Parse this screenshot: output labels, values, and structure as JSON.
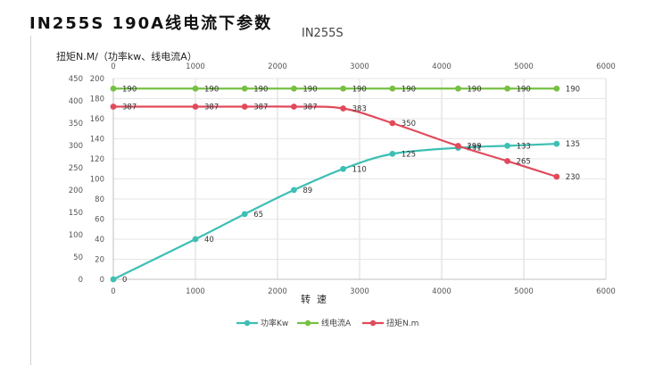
{
  "page_title": "IN255S   190A线电流下参数",
  "chart_data": {
    "type": "line",
    "title": "IN255S",
    "ylabel": "扭矩N.M/（功率kw、线电流A）",
    "xlabel": "转  速",
    "x_range": [
      0,
      6000
    ],
    "x_ticks": [
      0,
      1000,
      2000,
      3000,
      4000,
      5000,
      6000
    ],
    "y_left_range": [
      0,
      200
    ],
    "y_left_ticks": [
      0,
      20,
      40,
      60,
      80,
      100,
      120,
      140,
      160,
      180,
      200
    ],
    "y_right_range": [
      0,
      450
    ],
    "y_right_ticks": [
      0,
      50,
      100,
      150,
      200,
      250,
      300,
      350,
      400,
      450
    ],
    "grid": true,
    "legend_position": "bottom",
    "series": [
      {
        "name": "功率Kw",
        "color": "#3dbfb4",
        "axis": "left",
        "smooth": true,
        "x": [
          0,
          1000,
          1600,
          2200,
          2800,
          3400,
          4200,
          4800,
          5400
        ],
        "y": [
          0,
          40,
          65,
          89,
          110,
          125,
          131,
          133,
          135
        ],
        "labels": [
          "0",
          "40",
          "65",
          "89",
          "110",
          "125",
          "131",
          "133",
          "135"
        ]
      },
      {
        "name": "线电流A",
        "color": "#76c043",
        "axis": "left",
        "smooth": false,
        "x": [
          0,
          1000,
          1600,
          2200,
          2800,
          3400,
          4200,
          4800,
          5400
        ],
        "y": [
          190,
          190,
          190,
          190,
          190,
          190,
          190,
          190,
          190
        ],
        "labels": [
          "190",
          "190",
          "190",
          "190",
          "190",
          "190",
          "190",
          "190",
          "190"
        ]
      },
      {
        "name": "扭矩N.m",
        "color": "#e04a5a",
        "axis": "right",
        "smooth": true,
        "x": [
          0,
          1000,
          1600,
          2200,
          2800,
          3400,
          4200,
          4800,
          5400
        ],
        "y": [
          387,
          387,
          387,
          387,
          383,
          350,
          299,
          265,
          230
        ],
        "labels": [
          "387",
          "387",
          "387",
          "387",
          "383",
          "350",
          "299",
          "265",
          "230"
        ]
      }
    ]
  }
}
